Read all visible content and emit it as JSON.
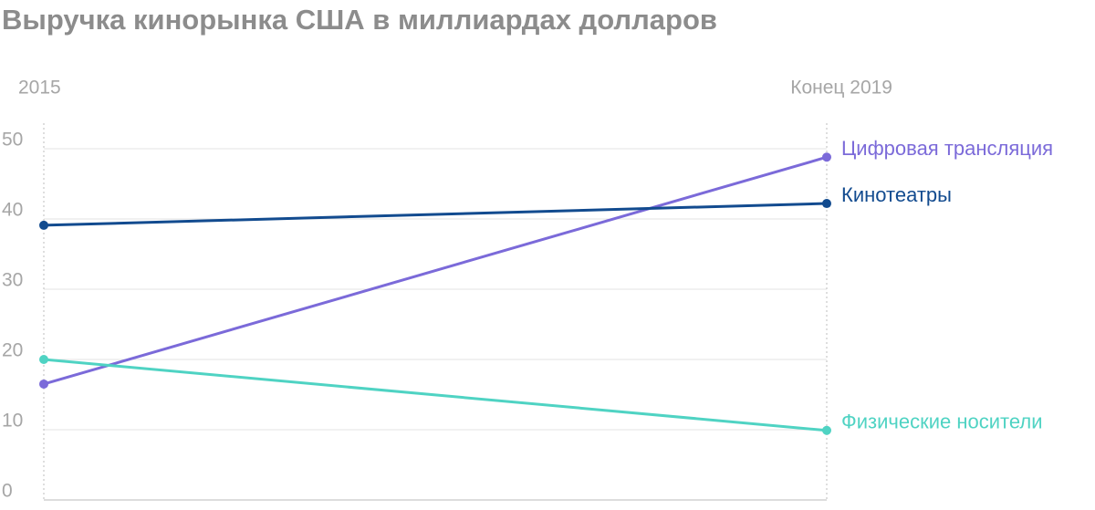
{
  "chart_data": {
    "type": "line",
    "title": "Выручка кинорынка США в миллиардах долларов",
    "categories": [
      "2015",
      "Конец 2019"
    ],
    "series": [
      {
        "name": "Цифровая трансляция",
        "color": "#7b6ad9",
        "values": [
          16.5,
          48.8
        ]
      },
      {
        "name": "Кинотеатры",
        "color": "#124b8f",
        "values": [
          39.1,
          42.2
        ]
      },
      {
        "name": "Физические носители",
        "color": "#4fd3c3",
        "values": [
          20,
          9.9
        ]
      }
    ],
    "ylim": [
      0,
      50
    ],
    "yticks": [
      0,
      10,
      20,
      30,
      40,
      50
    ],
    "grid": true
  }
}
